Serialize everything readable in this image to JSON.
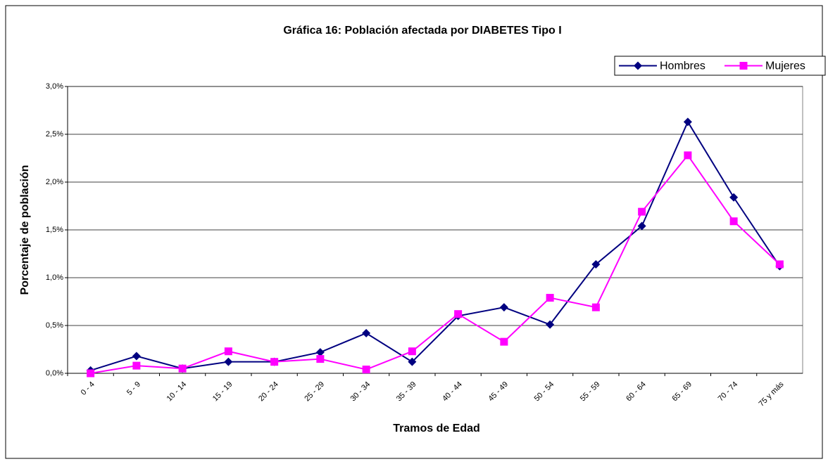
{
  "chart_data": {
    "type": "line",
    "title": "Gráfica 16: Población afectada por DIABETES Tipo I",
    "xlabel": "Tramos de Edad",
    "ylabel": "Porcentaje de población",
    "categories": [
      "0 - 4",
      "5 - 9",
      "10 - 14",
      "15 - 19",
      "20 - 24",
      "25 - 29",
      "30 - 34",
      "35 - 39",
      "40 - 44",
      "45 - 49",
      "50 - 54",
      "55 - 59",
      "60 - 64",
      "65 - 69",
      "70 - 74",
      "75 y más"
    ],
    "series": [
      {
        "name": "Hombres",
        "color": "#000080",
        "marker": "diamond",
        "values": [
          0.03,
          0.18,
          0.05,
          0.12,
          0.12,
          0.22,
          0.42,
          0.12,
          0.6,
          0.69,
          0.51,
          1.14,
          1.54,
          2.63,
          1.84,
          1.12
        ]
      },
      {
        "name": "Mujeres",
        "color": "#ff00ff",
        "marker": "square",
        "values": [
          0.0,
          0.08,
          0.05,
          0.23,
          0.12,
          0.15,
          0.04,
          0.23,
          0.62,
          0.33,
          0.79,
          0.69,
          1.69,
          2.28,
          1.59,
          1.14
        ]
      }
    ],
    "ylim": [
      0,
      3.0
    ],
    "yticks": [
      {
        "value": 0,
        "label": "0,0%"
      },
      {
        "value": 0.5,
        "label": "0,5%"
      },
      {
        "value": 1.0,
        "label": "1,0%"
      },
      {
        "value": 1.5,
        "label": "1,5%"
      },
      {
        "value": 2.0,
        "label": "2,0%"
      },
      {
        "value": 2.5,
        "label": "2,5%"
      },
      {
        "value": 3.0,
        "label": "3,0%"
      }
    ],
    "grid": true,
    "legend": "top-right"
  }
}
